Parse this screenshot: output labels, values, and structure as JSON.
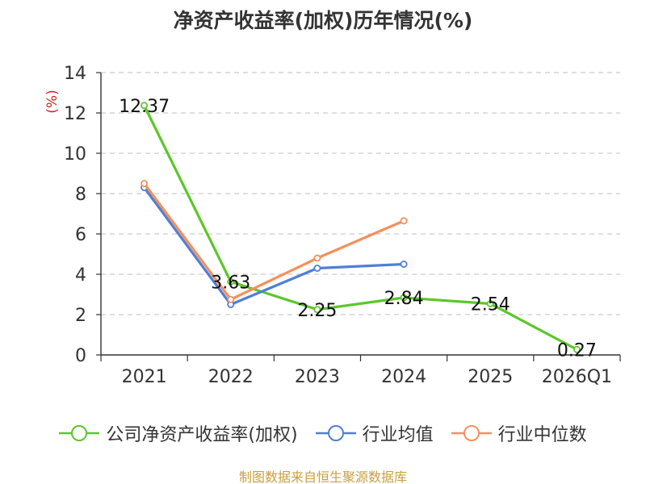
{
  "title": "净资产收益率(加权)历年情况(%)",
  "footer": "制图数据来自恒生聚源数据库",
  "chart_data": {
    "type": "line",
    "title": "净资产收益率(加权)历年情况(%)",
    "xlabel": "",
    "ylabel": "(%)",
    "ylim": [
      0,
      14
    ],
    "yticks": [
      0,
      2,
      4,
      6,
      8,
      10,
      12,
      14
    ],
    "grid": true,
    "legend_position": "bottom",
    "categories": [
      "2021",
      "2022",
      "2023",
      "2024",
      "2025",
      "2026Q1"
    ],
    "series": [
      {
        "name": "公司净资产收益率(加权)",
        "color": "#5cc72a",
        "values": [
          12.37,
          3.63,
          2.25,
          2.84,
          2.54,
          0.27
        ],
        "labels": [
          "12.37",
          "3.63",
          "2.25",
          "2.84",
          "2.54",
          "0.27"
        ]
      },
      {
        "name": "行业均值",
        "color": "#4f7fd6",
        "values": [
          8.3,
          2.5,
          4.3,
          4.5,
          null,
          null
        ]
      },
      {
        "name": "行业中位数",
        "color": "#f5905c",
        "values": [
          8.5,
          2.75,
          4.8,
          6.65,
          null,
          null
        ]
      }
    ]
  }
}
